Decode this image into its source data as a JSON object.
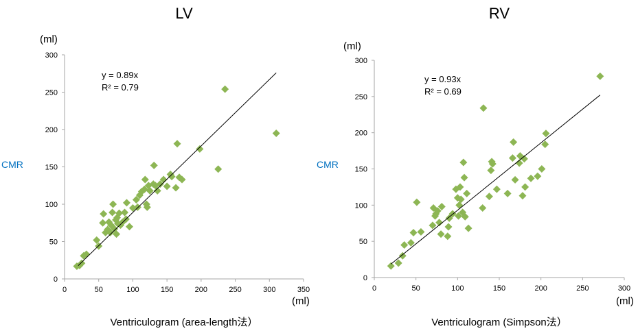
{
  "chart_data": [
    {
      "type": "scatter",
      "title": "LV",
      "ylabel": "CMR",
      "yunit": "(ml)",
      "xlabel": "Ventriculogram (area-length法）",
      "xunit": "(ml)",
      "xlim": [
        0,
        350
      ],
      "ylim": [
        0,
        300
      ],
      "xticks": [
        "0",
        "50",
        "100",
        "150",
        "200",
        "250",
        "300",
        "350"
      ],
      "yticks": [
        "0",
        "50",
        "100",
        "150",
        "200",
        "250",
        "300"
      ],
      "grid": false,
      "marker_color": "#8db654",
      "trendline": {
        "slope": 0.89,
        "x_range": [
          20,
          310
        ]
      },
      "equation": "y = 0.89x",
      "r2": "R² = 0.79",
      "points": [
        [
          18,
          17
        ],
        [
          22,
          18
        ],
        [
          25,
          21
        ],
        [
          28,
          31
        ],
        [
          32,
          33
        ],
        [
          47,
          52
        ],
        [
          50,
          44
        ],
        [
          56,
          75
        ],
        [
          57,
          87
        ],
        [
          60,
          62
        ],
        [
          63,
          66
        ],
        [
          65,
          76
        ],
        [
          67,
          62
        ],
        [
          68,
          72
        ],
        [
          70,
          89
        ],
        [
          71,
          100
        ],
        [
          73,
          67
        ],
        [
          75,
          79
        ],
        [
          76,
          60
        ],
        [
          77,
          82
        ],
        [
          78,
          74
        ],
        [
          80,
          88
        ],
        [
          82,
          72
        ],
        [
          85,
          76
        ],
        [
          88,
          89
        ],
        [
          90,
          80
        ],
        [
          91,
          102
        ],
        [
          95,
          70
        ],
        [
          100,
          95
        ],
        [
          105,
          106
        ],
        [
          107,
          96
        ],
        [
          110,
          112
        ],
        [
          113,
          117
        ],
        [
          117,
          120
        ],
        [
          118,
          133
        ],
        [
          120,
          100
        ],
        [
          121,
          96
        ],
        [
          123,
          125
        ],
        [
          125,
          118
        ],
        [
          130,
          127
        ],
        [
          131,
          152
        ],
        [
          133,
          125
        ],
        [
          136,
          118
        ],
        [
          140,
          127
        ],
        [
          145,
          133
        ],
        [
          150,
          124
        ],
        [
          155,
          140
        ],
        [
          157,
          137
        ],
        [
          163,
          122
        ],
        [
          165,
          181
        ],
        [
          168,
          136
        ],
        [
          172,
          133
        ],
        [
          198,
          174
        ],
        [
          225,
          147
        ],
        [
          235,
          254
        ],
        [
          310,
          195
        ]
      ]
    },
    {
      "type": "scatter",
      "title": "RV",
      "ylabel": "CMR",
      "yunit": "(ml)",
      "xlabel": "Ventriculogram (Simpson法）",
      "xunit": "(ml)",
      "xlim": [
        0,
        300
      ],
      "ylim": [
        0,
        300
      ],
      "xticks": [
        "0",
        "50",
        "100",
        "150",
        "200",
        "250",
        "300"
      ],
      "yticks": [
        "0",
        "50",
        "100",
        "150",
        "200",
        "250",
        "300"
      ],
      "grid": false,
      "marker_color": "#8db654",
      "trendline": {
        "slope": 0.93,
        "x_range": [
          20,
          271
        ]
      },
      "equation": "y = 0.93x",
      "r2": "R² = 0.69",
      "points": [
        [
          20,
          16
        ],
        [
          29,
          20
        ],
        [
          34,
          30
        ],
        [
          36,
          45
        ],
        [
          44,
          48
        ],
        [
          47,
          62
        ],
        [
          51,
          104
        ],
        [
          56,
          63
        ],
        [
          70,
          72
        ],
        [
          71,
          96
        ],
        [
          73,
          85
        ],
        [
          74,
          88
        ],
        [
          76,
          92
        ],
        [
          78,
          76
        ],
        [
          80,
          60
        ],
        [
          81,
          98
        ],
        [
          88,
          57
        ],
        [
          89,
          70
        ],
        [
          90,
          82
        ],
        [
          94,
          88
        ],
        [
          98,
          122
        ],
        [
          100,
          110
        ],
        [
          101,
          85
        ],
        [
          102,
          100
        ],
        [
          103,
          125
        ],
        [
          104,
          108
        ],
        [
          106,
          90
        ],
        [
          107,
          159
        ],
        [
          108,
          138
        ],
        [
          109,
          84
        ],
        [
          111,
          116
        ],
        [
          113,
          68
        ],
        [
          130,
          96
        ],
        [
          131,
          234
        ],
        [
          138,
          112
        ],
        [
          140,
          148
        ],
        [
          141,
          160
        ],
        [
          142,
          157
        ],
        [
          147,
          122
        ],
        [
          160,
          116
        ],
        [
          166,
          165
        ],
        [
          167,
          187
        ],
        [
          169,
          135
        ],
        [
          174,
          158
        ],
        [
          175,
          168
        ],
        [
          178,
          113
        ],
        [
          180,
          164
        ],
        [
          181,
          125
        ],
        [
          188,
          137
        ],
        [
          196,
          140
        ],
        [
          201,
          150
        ],
        [
          205,
          184
        ],
        [
          206,
          199
        ],
        [
          271,
          278
        ]
      ]
    }
  ]
}
